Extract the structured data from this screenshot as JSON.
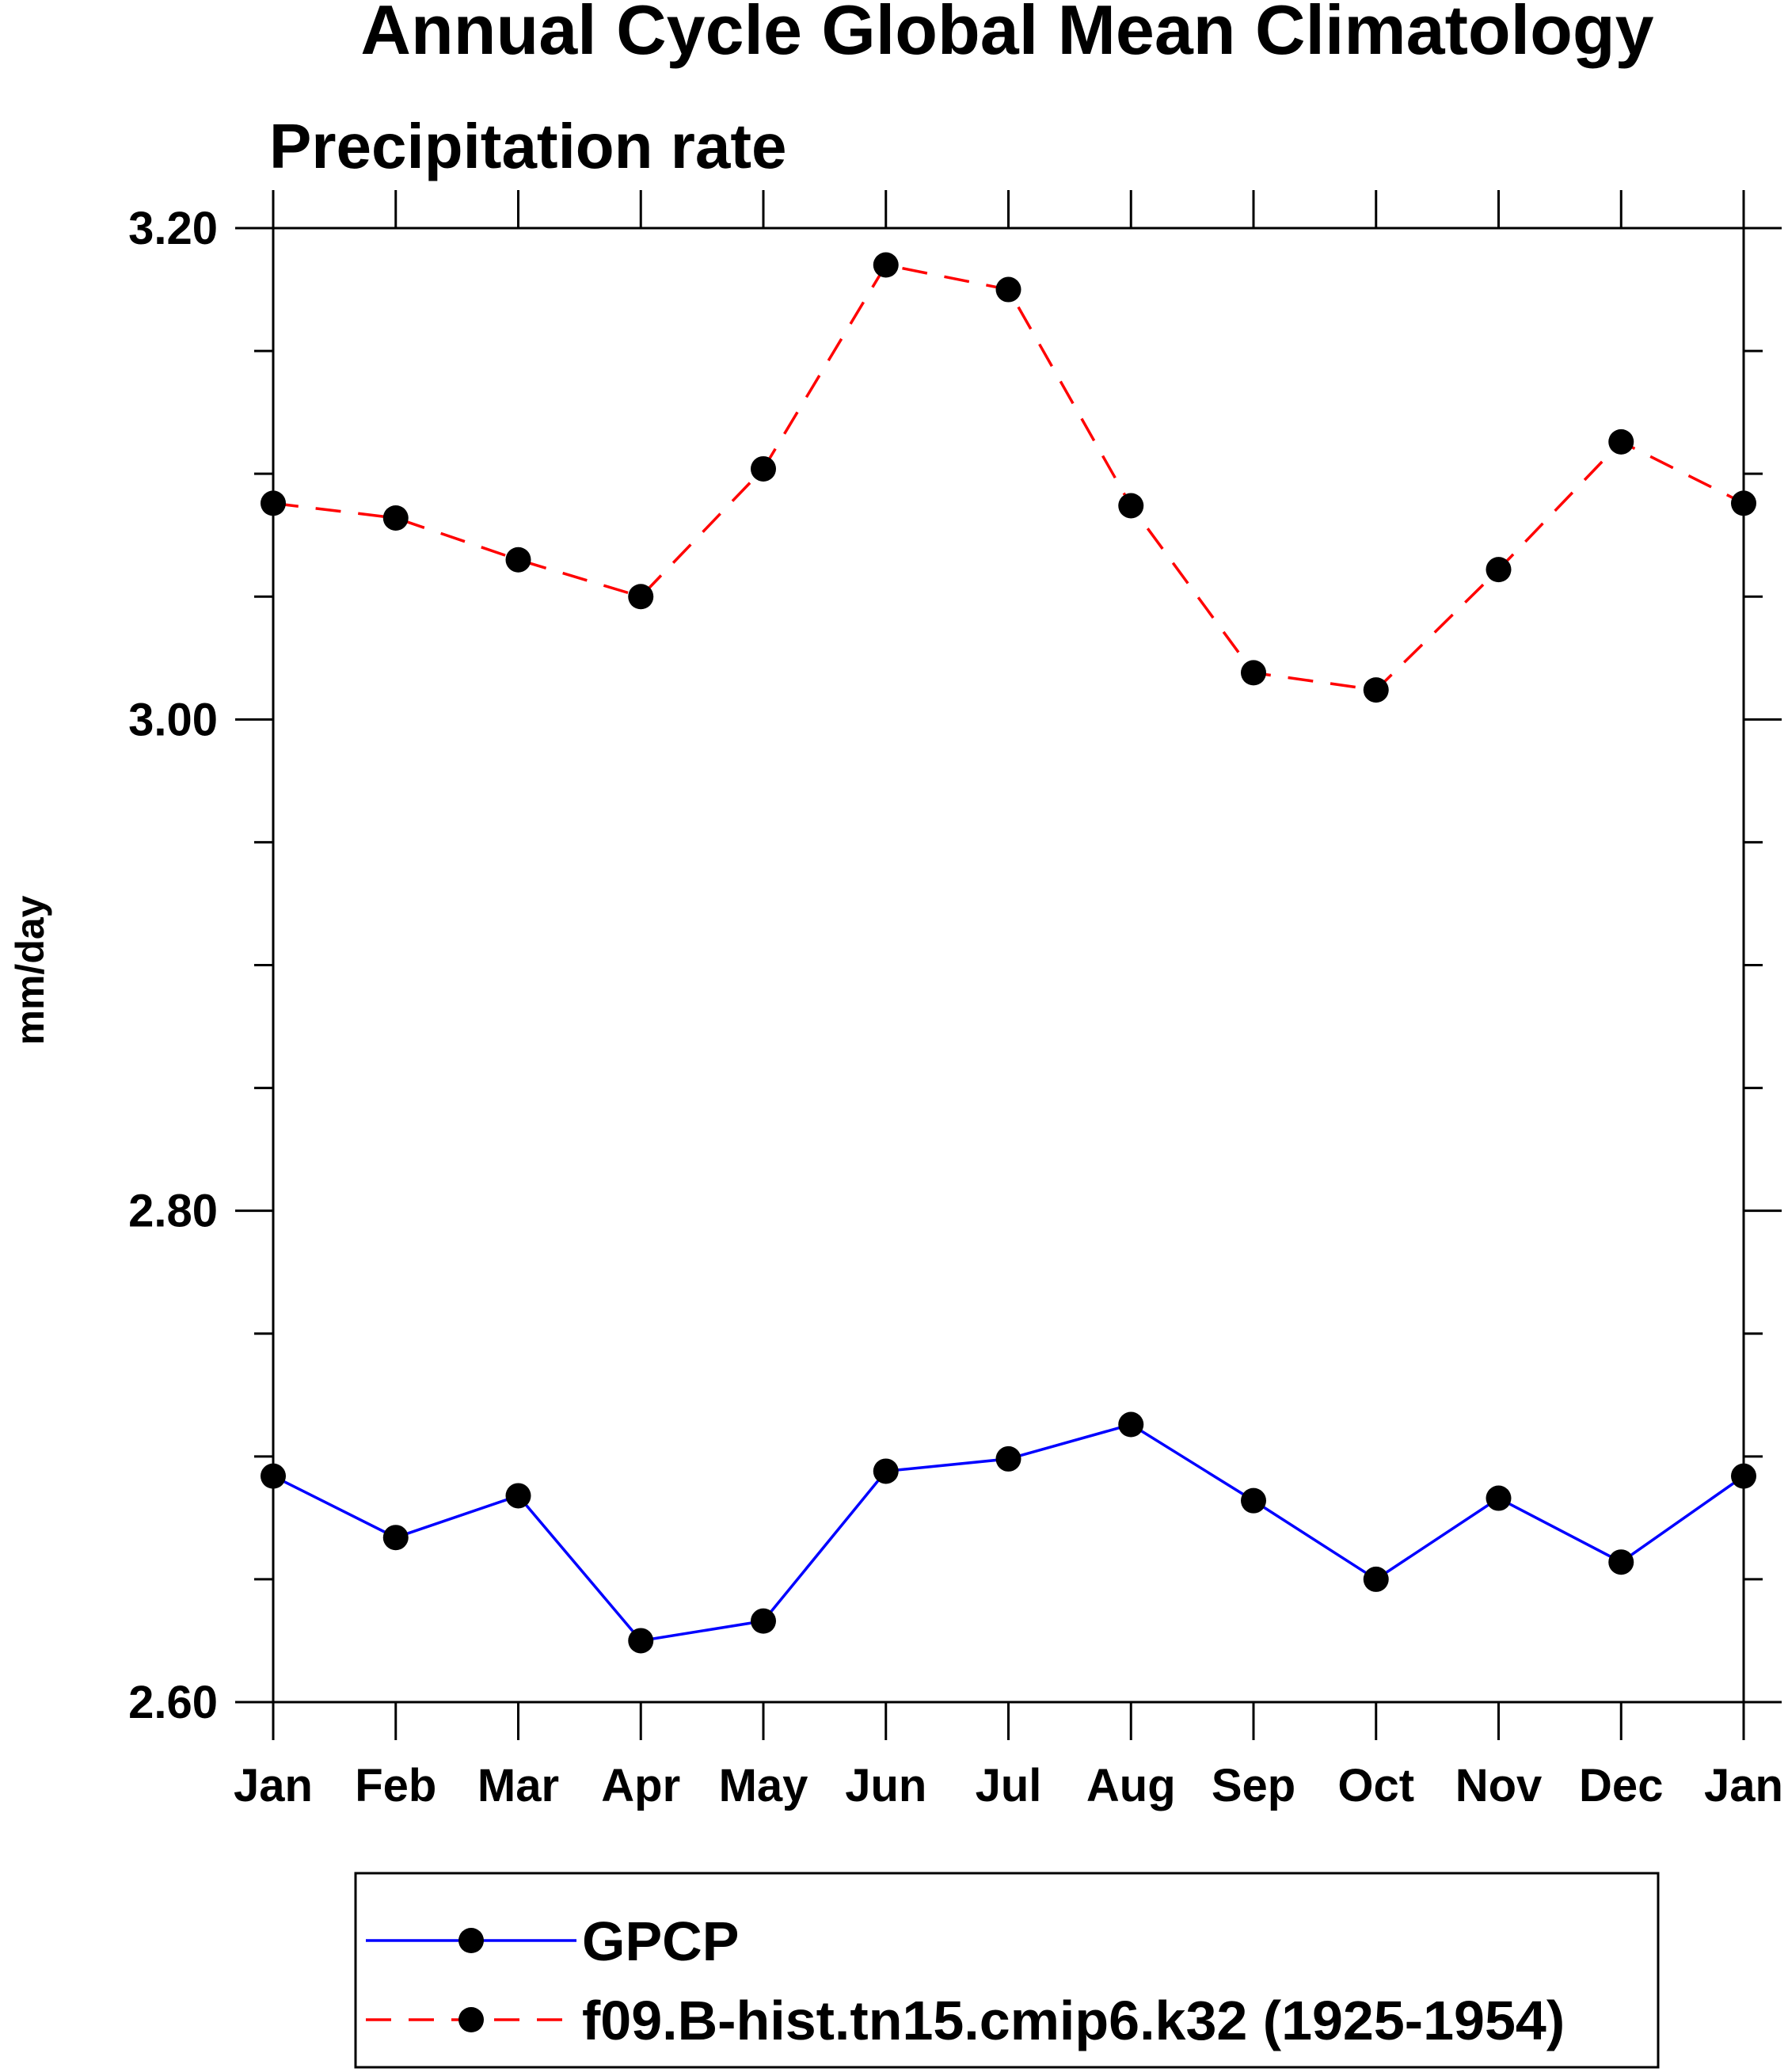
{
  "chart_data": {
    "type": "line",
    "title": "Annual Cycle Global Mean Climatology",
    "subtitle": "Precipitation rate",
    "xlabel": "",
    "ylabel": "mm/day",
    "categories": [
      "Jan",
      "Feb",
      "Mar",
      "Apr",
      "May",
      "Jun",
      "Jul",
      "Aug",
      "Sep",
      "Oct",
      "Nov",
      "Dec",
      "Jan"
    ],
    "ylim": [
      2.6,
      3.2
    ],
    "y_ticks": [
      "2.60",
      "2.80",
      "3.00",
      "3.20"
    ],
    "grid": false,
    "legend_position": "bottom",
    "series": [
      {
        "name": "GPCP",
        "color": "#0000ff",
        "line_style": "solid",
        "marker": "filled-circle",
        "values": [
          2.692,
          2.667,
          2.684,
          2.625,
          2.633,
          2.694,
          2.699,
          2.713,
          2.682,
          2.65,
          2.683,
          2.657,
          2.692
        ]
      },
      {
        "name": "f09.B-hist.tn15.cmip6.k32 (1925-1954)",
        "color": "#ff0000",
        "line_style": "dashed",
        "marker": "filled-circle",
        "values": [
          3.088,
          3.082,
          3.065,
          3.05,
          3.102,
          3.185,
          3.175,
          3.087,
          3.019,
          3.012,
          3.061,
          3.113,
          3.088
        ]
      }
    ]
  }
}
